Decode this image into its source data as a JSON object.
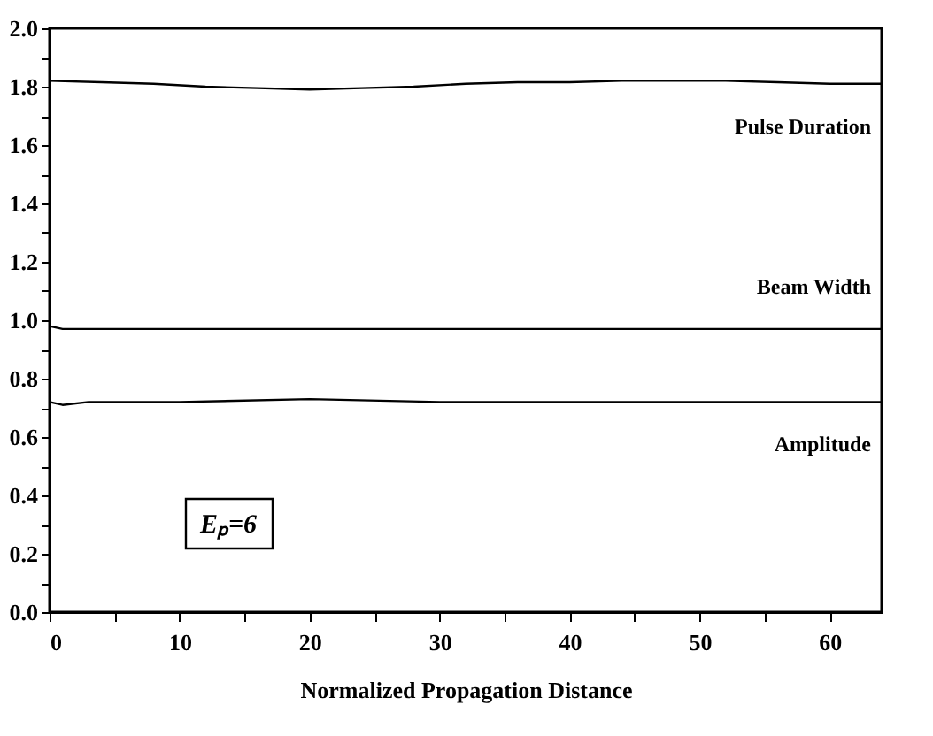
{
  "chart_data": {
    "type": "line",
    "xlabel": "Normalized Propagation Distance",
    "xlim": [
      0,
      64
    ],
    "xticks": [
      0,
      {
        "value": 5,
        "label": null
      },
      10,
      {
        "value": 15,
        "label": null
      },
      20,
      {
        "value": 25,
        "label": null
      },
      30,
      {
        "value": 35,
        "label": null
      },
      40,
      {
        "value": 45,
        "label": null
      },
      50,
      {
        "value": 55,
        "label": null
      },
      60
    ],
    "ylim": [
      0,
      2
    ],
    "yticks": [
      {
        "value": 0,
        "label": "0.0"
      },
      {
        "value": 0.1,
        "label": null
      },
      {
        "value": 0.2,
        "label": "0.2"
      },
      {
        "value": 0.3,
        "label": null
      },
      {
        "value": 0.4,
        "label": "0.4"
      },
      {
        "value": 0.5,
        "label": null
      },
      {
        "value": 0.6,
        "label": "0.6"
      },
      {
        "value": 0.7,
        "label": null
      },
      {
        "value": 0.8,
        "label": "0.8"
      },
      {
        "value": 0.9,
        "label": null
      },
      {
        "value": 1,
        "label": "1.0"
      },
      {
        "value": 1.1,
        "label": null
      },
      {
        "value": 1.2,
        "label": "1.2"
      },
      {
        "value": 1.3,
        "label": null
      },
      {
        "value": 1.4,
        "label": "1.4"
      },
      {
        "value": 1.5,
        "label": null
      },
      {
        "value": 1.6,
        "label": "1.6"
      },
      {
        "value": 1.7,
        "label": null
      },
      {
        "value": 1.8,
        "label": "1.8"
      },
      {
        "value": 1.9,
        "label": null
      },
      {
        "value": 2,
        "label": "2.0"
      }
    ],
    "grid": false,
    "marker": "none",
    "line_style": "solid",
    "series": [
      {
        "name": "Pulse Duration",
        "color": "#000000",
        "x": [
          0,
          4,
          8,
          12,
          16,
          20,
          24,
          28,
          32,
          36,
          40,
          44,
          48,
          52,
          56,
          60,
          64
        ],
        "values": [
          1.82,
          1.815,
          1.81,
          1.8,
          1.795,
          1.79,
          1.795,
          1.8,
          1.81,
          1.815,
          1.815,
          1.82,
          1.82,
          1.82,
          1.815,
          1.81,
          1.81
        ]
      },
      {
        "name": "Beam Width",
        "color": "#000000",
        "x": [
          0,
          1,
          2,
          64
        ],
        "values": [
          0.98,
          0.97,
          0.97,
          0.97
        ]
      },
      {
        "name": "Amplitude",
        "color": "#000000",
        "x": [
          0,
          1,
          3,
          10,
          20,
          30,
          40,
          50,
          64
        ],
        "values": [
          0.72,
          0.71,
          0.72,
          0.72,
          0.73,
          0.72,
          0.72,
          0.72,
          0.72
        ]
      }
    ],
    "annotations": [
      "Eₚ=6"
    ]
  }
}
